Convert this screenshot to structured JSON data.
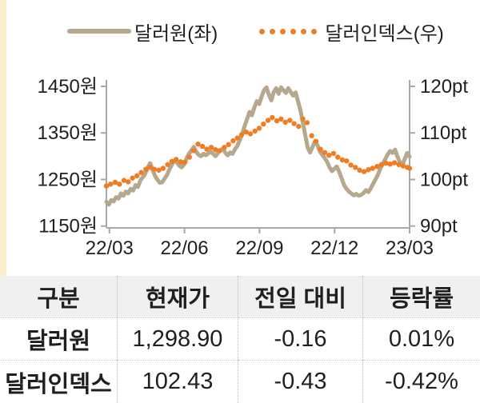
{
  "legend": {
    "series1": "달러원(좌)",
    "series2": "달러인덱스(우)"
  },
  "chart_data": {
    "type": "line",
    "title": "",
    "legend_position": "top",
    "grid": false,
    "left_axis": {
      "label": "원",
      "range": [
        1150,
        1450
      ],
      "tick_values": [
        1450,
        1350,
        1250,
        1150
      ],
      "tick_labels": [
        "1450원",
        "1350원",
        "1250원",
        "1150원"
      ]
    },
    "right_axis": {
      "label": "pt",
      "range": [
        90,
        120
      ],
      "tick_values": [
        120,
        110,
        100,
        90
      ],
      "tick_labels": [
        "120pt",
        "110pt",
        "100pt",
        "90pt"
      ]
    },
    "x_axis": {
      "tick_labels": [
        "22/03",
        "22/06",
        "22/09",
        "22/12",
        "23/03"
      ],
      "tick_positions": [
        0.01,
        0.2575,
        0.505,
        0.7525,
        1.0
      ]
    },
    "series": [
      {
        "name": "달러원(좌)",
        "axis": "left",
        "style": "line",
        "color": "#b5a88e",
        "points": [
          [
            0.0,
            1202
          ],
          [
            0.008,
            1196
          ],
          [
            0.016,
            1206
          ],
          [
            0.024,
            1203
          ],
          [
            0.032,
            1212
          ],
          [
            0.04,
            1209
          ],
          [
            0.048,
            1220
          ],
          [
            0.056,
            1215
          ],
          [
            0.064,
            1224
          ],
          [
            0.072,
            1220
          ],
          [
            0.08,
            1230
          ],
          [
            0.088,
            1226
          ],
          [
            0.096,
            1238
          ],
          [
            0.104,
            1234
          ],
          [
            0.112,
            1248
          ],
          [
            0.12,
            1255
          ],
          [
            0.128,
            1262
          ],
          [
            0.136,
            1275
          ],
          [
            0.144,
            1285
          ],
          [
            0.152,
            1272
          ],
          [
            0.16,
            1258
          ],
          [
            0.168,
            1250
          ],
          [
            0.176,
            1243
          ],
          [
            0.184,
            1244
          ],
          [
            0.192,
            1252
          ],
          [
            0.2,
            1260
          ],
          [
            0.208,
            1272
          ],
          [
            0.216,
            1282
          ],
          [
            0.224,
            1290
          ],
          [
            0.232,
            1287
          ],
          [
            0.24,
            1280
          ],
          [
            0.248,
            1276
          ],
          [
            0.256,
            1282
          ],
          [
            0.264,
            1295
          ],
          [
            0.272,
            1305
          ],
          [
            0.28,
            1312
          ],
          [
            0.288,
            1320
          ],
          [
            0.296,
            1310
          ],
          [
            0.304,
            1303
          ],
          [
            0.312,
            1300
          ],
          [
            0.32,
            1305
          ],
          [
            0.328,
            1302
          ],
          [
            0.336,
            1306
          ],
          [
            0.344,
            1310
          ],
          [
            0.352,
            1305
          ],
          [
            0.36,
            1300
          ],
          [
            0.368,
            1307
          ],
          [
            0.376,
            1313
          ],
          [
            0.384,
            1316
          ],
          [
            0.392,
            1308
          ],
          [
            0.4,
            1302
          ],
          [
            0.408,
            1308
          ],
          [
            0.416,
            1305
          ],
          [
            0.424,
            1315
          ],
          [
            0.432,
            1322
          ],
          [
            0.44,
            1335
          ],
          [
            0.448,
            1348
          ],
          [
            0.456,
            1365
          ],
          [
            0.464,
            1380
          ],
          [
            0.472,
            1395
          ],
          [
            0.48,
            1388
          ],
          [
            0.488,
            1405
          ],
          [
            0.496,
            1418
          ],
          [
            0.504,
            1412
          ],
          [
            0.512,
            1428
          ],
          [
            0.52,
            1442
          ],
          [
            0.528,
            1448
          ],
          [
            0.536,
            1432
          ],
          [
            0.544,
            1420
          ],
          [
            0.552,
            1438
          ],
          [
            0.56,
            1446
          ],
          [
            0.568,
            1434
          ],
          [
            0.576,
            1448
          ],
          [
            0.584,
            1442
          ],
          [
            0.592,
            1436
          ],
          [
            0.6,
            1446
          ],
          [
            0.608,
            1438
          ],
          [
            0.616,
            1430
          ],
          [
            0.624,
            1437
          ],
          [
            0.632,
            1418
          ],
          [
            0.64,
            1398
          ],
          [
            0.648,
            1372
          ],
          [
            0.656,
            1345
          ],
          [
            0.664,
            1318
          ],
          [
            0.672,
            1308
          ],
          [
            0.68,
            1320
          ],
          [
            0.688,
            1332
          ],
          [
            0.696,
            1324
          ],
          [
            0.704,
            1310
          ],
          [
            0.712,
            1303
          ],
          [
            0.72,
            1296
          ],
          [
            0.728,
            1288
          ],
          [
            0.736,
            1276
          ],
          [
            0.744,
            1268
          ],
          [
            0.752,
            1273
          ],
          [
            0.76,
            1278
          ],
          [
            0.768,
            1266
          ],
          [
            0.776,
            1252
          ],
          [
            0.784,
            1238
          ],
          [
            0.792,
            1230
          ],
          [
            0.8,
            1224
          ],
          [
            0.808,
            1220
          ],
          [
            0.816,
            1216
          ],
          [
            0.824,
            1219
          ],
          [
            0.832,
            1215
          ],
          [
            0.84,
            1217
          ],
          [
            0.848,
            1221
          ],
          [
            0.856,
            1227
          ],
          [
            0.864,
            1223
          ],
          [
            0.872,
            1231
          ],
          [
            0.88,
            1241
          ],
          [
            0.888,
            1251
          ],
          [
            0.896,
            1261
          ],
          [
            0.904,
            1274
          ],
          [
            0.912,
            1284
          ],
          [
            0.92,
            1294
          ],
          [
            0.928,
            1304
          ],
          [
            0.936,
            1311
          ],
          [
            0.944,
            1307
          ],
          [
            0.952,
            1314
          ],
          [
            0.96,
            1299
          ],
          [
            0.968,
            1287
          ],
          [
            0.976,
            1281
          ],
          [
            0.984,
            1294
          ],
          [
            0.992,
            1307
          ],
          [
            1.0,
            1299
          ]
        ]
      },
      {
        "name": "달러인덱스(우)",
        "axis": "right",
        "style": "dots",
        "color": "#ee7d23",
        "points": [
          [
            0.0,
            98.6
          ],
          [
            0.014,
            99.0
          ],
          [
            0.029,
            99.4
          ],
          [
            0.043,
            99.0
          ],
          [
            0.058,
            99.8
          ],
          [
            0.072,
            99.5
          ],
          [
            0.086,
            100.3
          ],
          [
            0.101,
            100.8
          ],
          [
            0.115,
            101.5
          ],
          [
            0.13,
            102.2
          ],
          [
            0.144,
            102.6
          ],
          [
            0.158,
            102.2
          ],
          [
            0.173,
            102.0
          ],
          [
            0.187,
            102.4
          ],
          [
            0.202,
            103.2
          ],
          [
            0.216,
            103.9
          ],
          [
            0.23,
            104.3
          ],
          [
            0.245,
            103.8
          ],
          [
            0.259,
            103.7
          ],
          [
            0.274,
            104.8
          ],
          [
            0.288,
            106.2
          ],
          [
            0.302,
            107.6
          ],
          [
            0.317,
            107.1
          ],
          [
            0.331,
            106.5
          ],
          [
            0.346,
            106.9
          ],
          [
            0.36,
            106.4
          ],
          [
            0.374,
            106.2
          ],
          [
            0.389,
            106.9
          ],
          [
            0.403,
            107.5
          ],
          [
            0.418,
            108.3
          ],
          [
            0.432,
            108.9
          ],
          [
            0.446,
            109.6
          ],
          [
            0.461,
            110.2
          ],
          [
            0.475,
            109.8
          ],
          [
            0.49,
            110.4
          ],
          [
            0.504,
            111.0
          ],
          [
            0.518,
            111.9
          ],
          [
            0.533,
            112.7
          ],
          [
            0.547,
            113.3
          ],
          [
            0.562,
            112.6
          ],
          [
            0.576,
            113.0
          ],
          [
            0.59,
            112.3
          ],
          [
            0.605,
            112.7
          ],
          [
            0.619,
            112.0
          ],
          [
            0.634,
            111.4
          ],
          [
            0.648,
            113.0
          ],
          [
            0.662,
            112.2
          ],
          [
            0.677,
            109.4
          ],
          [
            0.691,
            108.2
          ],
          [
            0.706,
            106.5
          ],
          [
            0.72,
            105.8
          ],
          [
            0.734,
            105.2
          ],
          [
            0.749,
            105.6
          ],
          [
            0.763,
            104.8
          ],
          [
            0.778,
            104.2
          ],
          [
            0.792,
            104.0
          ],
          [
            0.806,
            103.1
          ],
          [
            0.821,
            102.6
          ],
          [
            0.835,
            102.0
          ],
          [
            0.85,
            101.7
          ],
          [
            0.864,
            102.1
          ],
          [
            0.878,
            102.4
          ],
          [
            0.893,
            102.8
          ],
          [
            0.907,
            103.2
          ],
          [
            0.922,
            103.5
          ],
          [
            0.936,
            103.3
          ],
          [
            0.95,
            103.6
          ],
          [
            0.965,
            103.2
          ],
          [
            0.979,
            102.9
          ],
          [
            0.993,
            102.6
          ],
          [
            1.0,
            102.4
          ]
        ]
      }
    ]
  },
  "table": {
    "columns": [
      "구분",
      "현재가",
      "전일 대비",
      "등락률"
    ],
    "rows": [
      [
        "달러원",
        "1,298.90",
        "-0.16",
        "0.01%"
      ],
      [
        "달러인덱스",
        "102.43",
        "-0.43",
        "-0.42%"
      ]
    ]
  },
  "colors": {
    "usdkrw_line": "#b5a88e",
    "dollar_index_dots": "#ee7d23",
    "left_strip": "#fbeccc",
    "table_header_bg": "#f0f0ee",
    "axis": "#a8a8a8",
    "text": "#1f1f1f"
  }
}
